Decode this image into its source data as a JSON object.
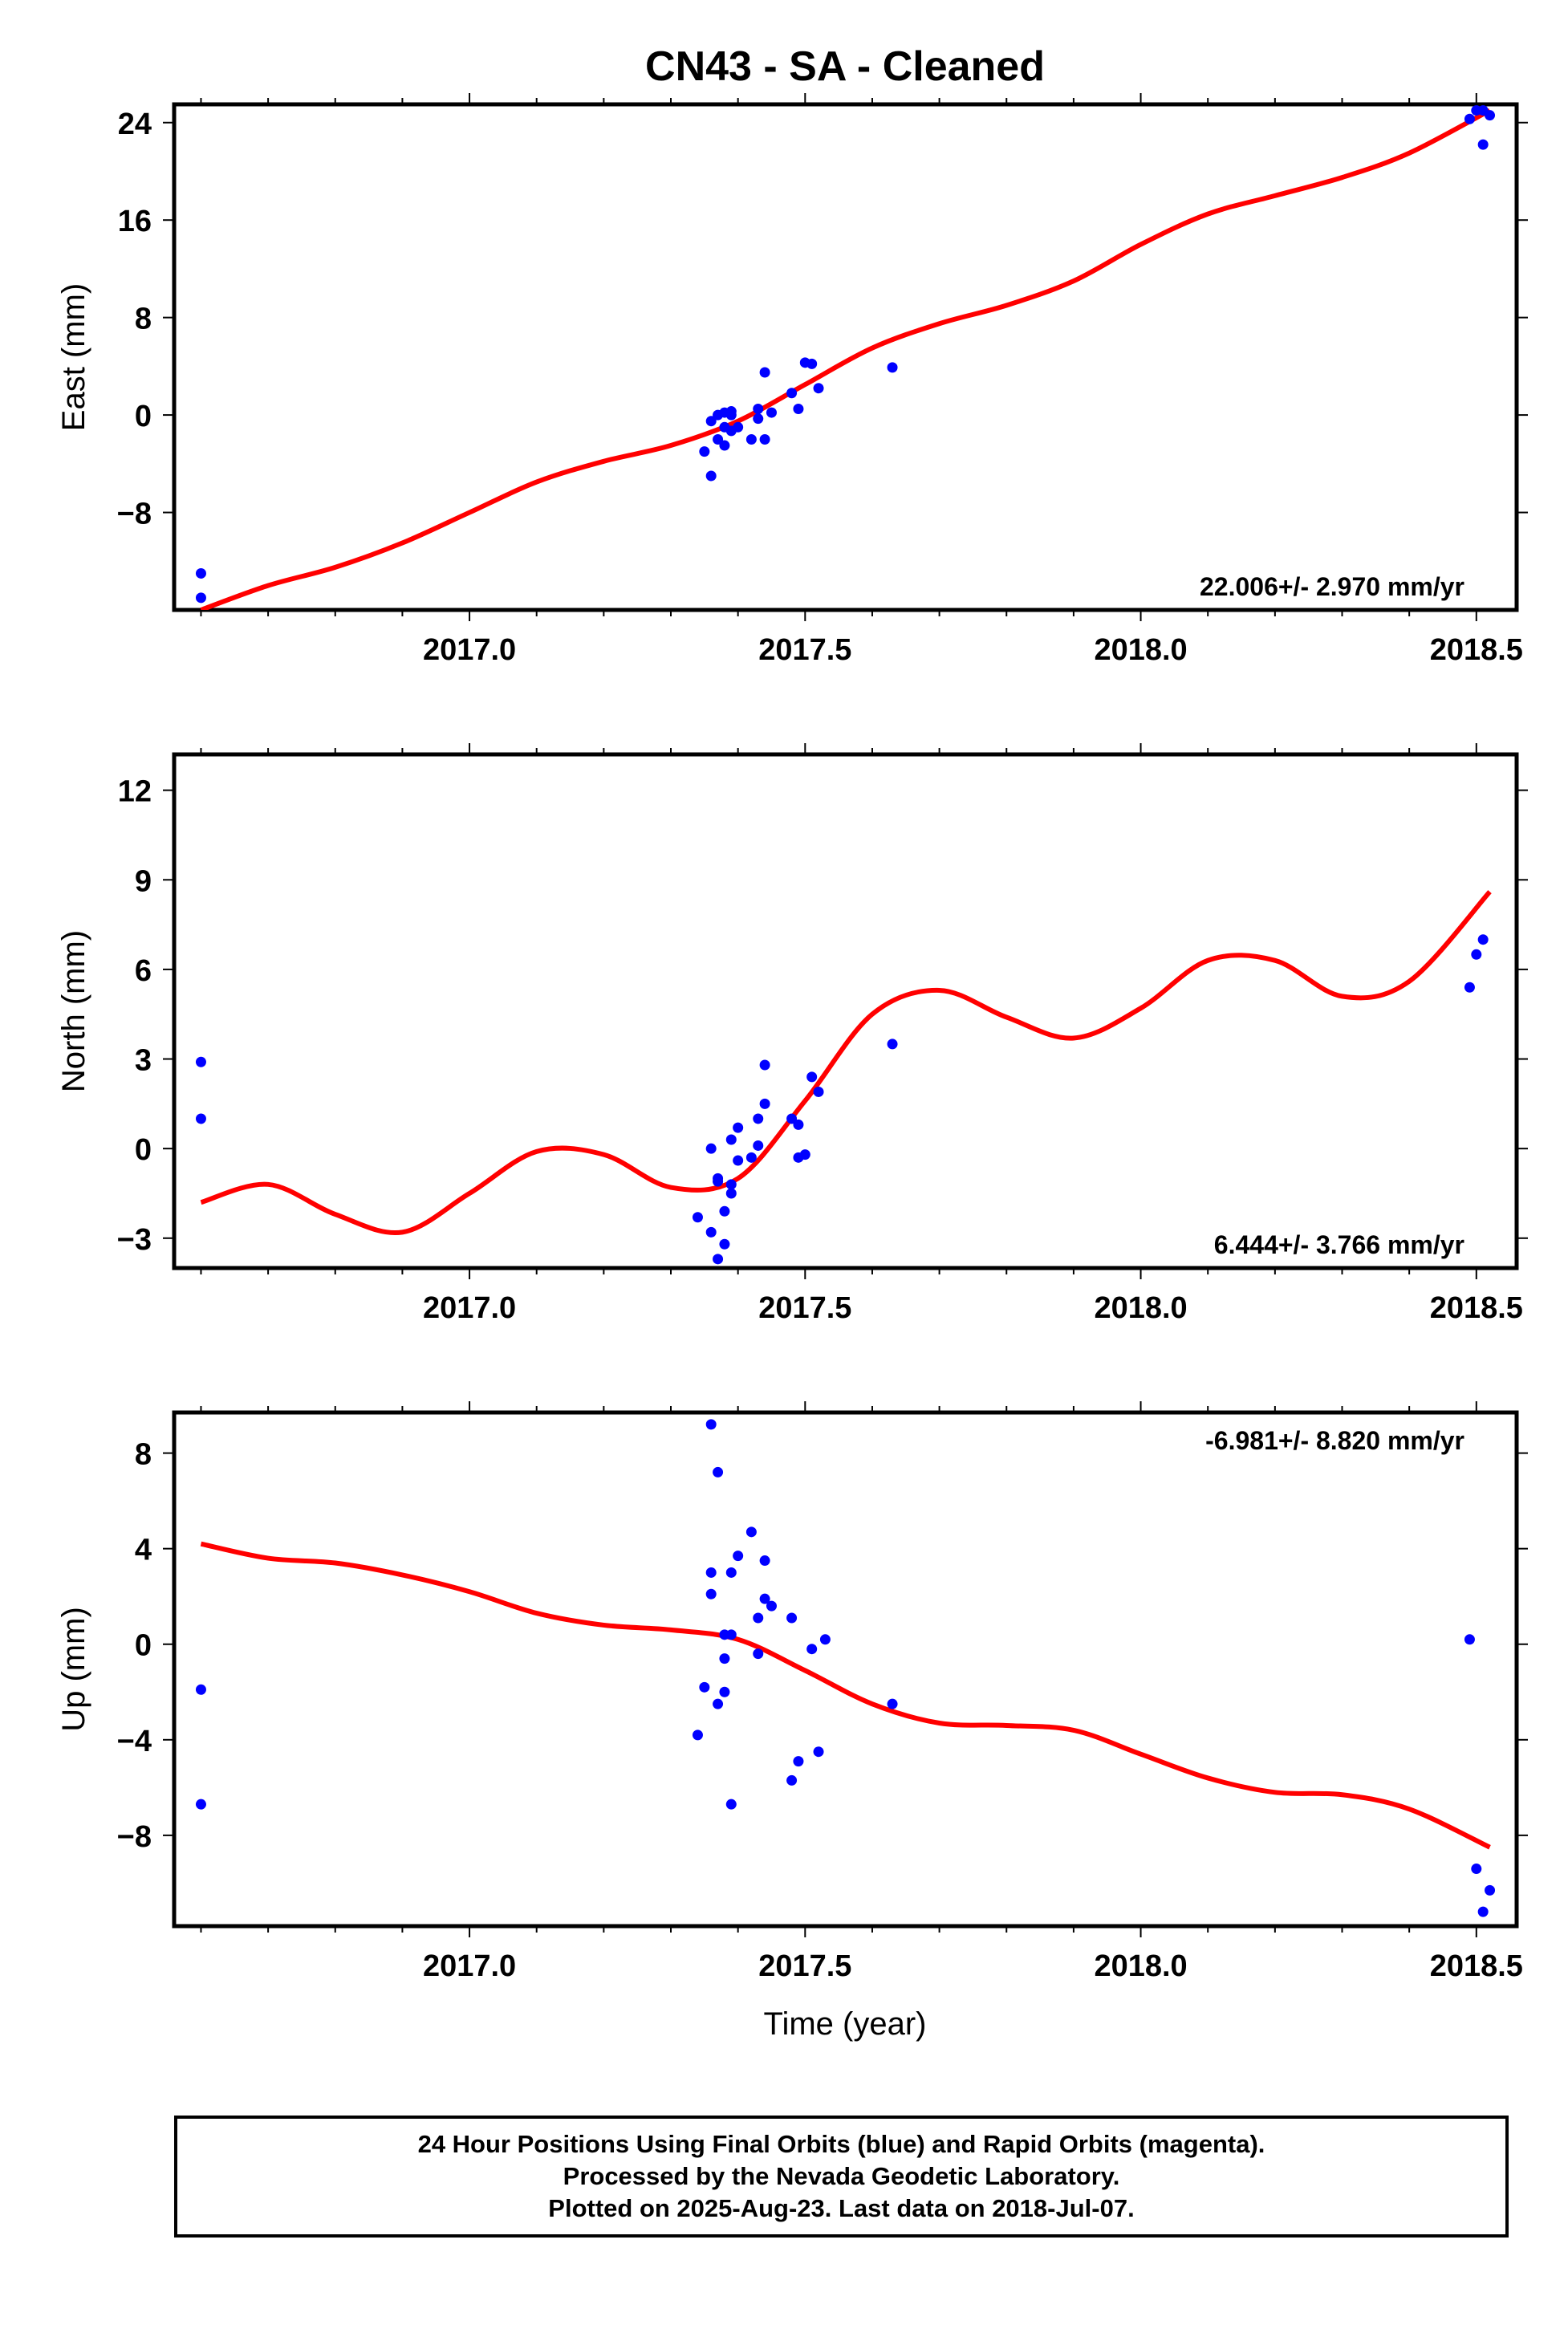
{
  "title": "CN43  - SA - Cleaned",
  "footer": {
    "lines": [
      "24 Hour Positions Using Final Orbits (blue) and Rapid Orbits (magenta).",
      "Processed by the Nevada Geodetic Laboratory.",
      "Plotted on 2025-Aug-23. Last data on 2018-Jul-07."
    ]
  },
  "colors": {
    "final_orbits": "#0000ff",
    "fit": "#ff0000",
    "frame": "#000000"
  },
  "chart_data": [
    {
      "type": "scatter",
      "title": "CN43  - SA - Cleaned",
      "ylabel": "East (mm)",
      "xlabel": "",
      "xlim": [
        2016.56,
        2018.56
      ],
      "ylim": [
        -16,
        25.5
      ],
      "xticks": [
        2017.0,
        2017.5,
        2018.0,
        2018.5
      ],
      "xtick_labels": [
        "2017.0",
        "2017.5",
        "2018.0",
        "2018.5"
      ],
      "yticks": [
        24,
        16,
        8,
        0,
        -8
      ],
      "ytick_labels": [
        "24",
        "16",
        "8",
        "0",
        "−8"
      ],
      "rate_label": "22.006+/- 2.970 mm/yr",
      "grid": false,
      "series": [
        {
          "type": "scatter",
          "color": "#0000ff",
          "x": [
            2016.6,
            2016.6,
            2017.35,
            2017.36,
            2017.36,
            2017.37,
            2017.37,
            2017.38,
            2017.38,
            2017.38,
            2017.39,
            2017.39,
            2017.39,
            2017.4,
            2017.42,
            2017.43,
            2017.43,
            2017.44,
            2017.44,
            2017.45,
            2017.48,
            2017.49,
            2017.5,
            2017.51,
            2017.52,
            2017.63,
            2018.49,
            2018.5,
            2018.51,
            2018.51,
            2018.52
          ],
          "y": [
            -13,
            -15,
            -3,
            -5,
            -0.5,
            0,
            -2,
            0.2,
            -1,
            -2.5,
            0.3,
            0,
            -1.3,
            -1,
            -2,
            0.5,
            -0.3,
            3.5,
            -2,
            0.2,
            1.8,
            0.5,
            4.3,
            4.2,
            2.2,
            3.9,
            24.3,
            25,
            22.2,
            25,
            24.6
          ]
        },
        {
          "type": "line",
          "color": "#ff0000",
          "x": [
            2016.6,
            2016.7,
            2016.8,
            2016.9,
            2017.0,
            2017.1,
            2017.2,
            2017.3,
            2017.4,
            2017.5,
            2017.6,
            2017.7,
            2017.8,
            2017.9,
            2018.0,
            2018.1,
            2018.2,
            2018.3,
            2018.4,
            2018.52
          ],
          "y": [
            -16,
            -14,
            -12.5,
            -10.5,
            -8,
            -5.5,
            -3.8,
            -2.5,
            -0.5,
            2.5,
            5.5,
            7.5,
            9,
            11,
            14,
            16.5,
            18,
            19.5,
            21.5,
            25
          ]
        }
      ]
    },
    {
      "type": "scatter",
      "ylabel": "North (mm)",
      "xlabel": "",
      "xlim": [
        2016.56,
        2018.56
      ],
      "ylim": [
        -4,
        13.2
      ],
      "xticks": [
        2017.0,
        2017.5,
        2018.0,
        2018.5
      ],
      "xtick_labels": [
        "2017.0",
        "2017.5",
        "2018.0",
        "2018.5"
      ],
      "yticks": [
        12,
        9,
        6,
        3,
        0,
        -3
      ],
      "ytick_labels": [
        "12",
        "9",
        "6",
        "3",
        "0",
        "−3"
      ],
      "rate_label": "6.444+/- 3.766 mm/yr",
      "grid": false,
      "series": [
        {
          "type": "scatter",
          "color": "#0000ff",
          "x": [
            2016.6,
            2016.6,
            2017.34,
            2017.36,
            2017.36,
            2017.37,
            2017.37,
            2017.37,
            2017.38,
            2017.38,
            2017.39,
            2017.39,
            2017.39,
            2017.4,
            2017.4,
            2017.42,
            2017.43,
            2017.43,
            2017.44,
            2017.44,
            2017.48,
            2017.49,
            2017.49,
            2017.5,
            2017.51,
            2017.52,
            2017.63,
            2018.49,
            2018.5,
            2018.51
          ],
          "y": [
            2.9,
            1,
            -2.3,
            -2.8,
            0,
            -1,
            -3.7,
            -1.1,
            -3.2,
            -2.1,
            -1.2,
            0.3,
            -1.5,
            0.7,
            -0.4,
            -0.3,
            0.1,
            1,
            2.8,
            1.5,
            1,
            0.8,
            -0.3,
            -0.2,
            2.4,
            1.9,
            3.5,
            5.4,
            6.5,
            7
          ]
        },
        {
          "type": "line",
          "color": "#ff0000",
          "x": [
            2016.6,
            2016.7,
            2016.8,
            2016.9,
            2017.0,
            2017.1,
            2017.2,
            2017.3,
            2017.4,
            2017.5,
            2017.6,
            2017.7,
            2017.8,
            2017.9,
            2018.0,
            2018.1,
            2018.2,
            2018.3,
            2018.4,
            2018.52
          ],
          "y": [
            -1.8,
            -1.2,
            -2.2,
            -2.8,
            -1.5,
            -0.1,
            -0.2,
            -1.3,
            -1,
            1.6,
            4.5,
            5.3,
            4.4,
            3.7,
            4.7,
            6.3,
            6.3,
            5.1,
            5.6,
            8.6
          ]
        }
      ]
    },
    {
      "type": "scatter",
      "ylabel": "Up (mm)",
      "xlabel": "Time (year)",
      "xlim": [
        2016.56,
        2018.56
      ],
      "ylim": [
        -11.8,
        9.7
      ],
      "xticks": [
        2017.0,
        2017.5,
        2018.0,
        2018.5
      ],
      "xtick_labels": [
        "2017.0",
        "2017.5",
        "2018.0",
        "2018.5"
      ],
      "yticks": [
        8,
        4,
        0,
        -4,
        -8
      ],
      "ytick_labels": [
        "8",
        "4",
        "0",
        "−4",
        "−8"
      ],
      "rate_label": "-6.981+/- 8.820 mm/yr",
      "grid": false,
      "series": [
        {
          "type": "scatter",
          "color": "#0000ff",
          "x": [
            2016.6,
            2016.6,
            2017.34,
            2017.35,
            2017.36,
            2017.36,
            2017.36,
            2017.37,
            2017.37,
            2017.38,
            2017.38,
            2017.38,
            2017.39,
            2017.39,
            2017.39,
            2017.4,
            2017.42,
            2017.43,
            2017.43,
            2017.44,
            2017.44,
            2017.45,
            2017.48,
            2017.48,
            2017.49,
            2017.51,
            2017.52,
            2017.53,
            2017.63,
            2018.49,
            2018.5,
            2018.51,
            2018.52
          ],
          "y": [
            -1.9,
            -6.7,
            -3.8,
            -1.8,
            9.2,
            3,
            2.1,
            7.2,
            -2.5,
            -0.6,
            0.4,
            -2,
            -6.7,
            0.4,
            3,
            3.7,
            4.7,
            -0.4,
            1.1,
            3.5,
            1.9,
            1.6,
            1.1,
            -5.7,
            -4.9,
            -0.2,
            -4.5,
            0.2,
            -2.5,
            0.2,
            -9.4,
            -11.2,
            -10.3
          ]
        },
        {
          "type": "line",
          "color": "#ff0000",
          "x": [
            2016.6,
            2016.7,
            2016.8,
            2016.9,
            2017.0,
            2017.1,
            2017.2,
            2017.3,
            2017.4,
            2017.5,
            2017.6,
            2017.7,
            2017.8,
            2017.9,
            2018.0,
            2018.1,
            2018.2,
            2018.3,
            2018.4,
            2018.52
          ],
          "y": [
            4.2,
            3.6,
            3.4,
            2.9,
            2.2,
            1.3,
            0.8,
            0.6,
            0.2,
            -1.1,
            -2.5,
            -3.3,
            -3.4,
            -3.6,
            -4.6,
            -5.6,
            -6.2,
            -6.3,
            -6.9,
            -8.5
          ]
        }
      ]
    }
  ]
}
